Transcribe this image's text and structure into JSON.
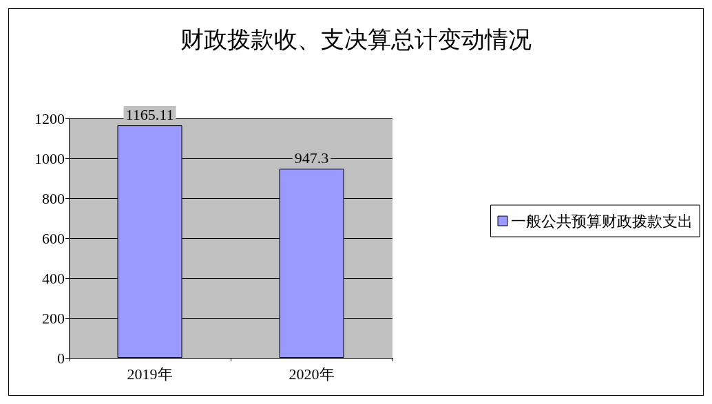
{
  "chart_data": {
    "type": "bar",
    "title": "财政拨款收、支决算总计变动情况",
    "categories": [
      "2019年",
      "2020年"
    ],
    "series": [
      {
        "name": "一般公共预算财政拨款支出",
        "color": "#9999ff",
        "values": [
          1165.11,
          947.3
        ]
      }
    ],
    "ylim": [
      0,
      1200
    ],
    "yticks": [
      0,
      200,
      400,
      600,
      800,
      1000,
      1200
    ],
    "grid": "y",
    "legend": "right",
    "data_labels": true
  }
}
